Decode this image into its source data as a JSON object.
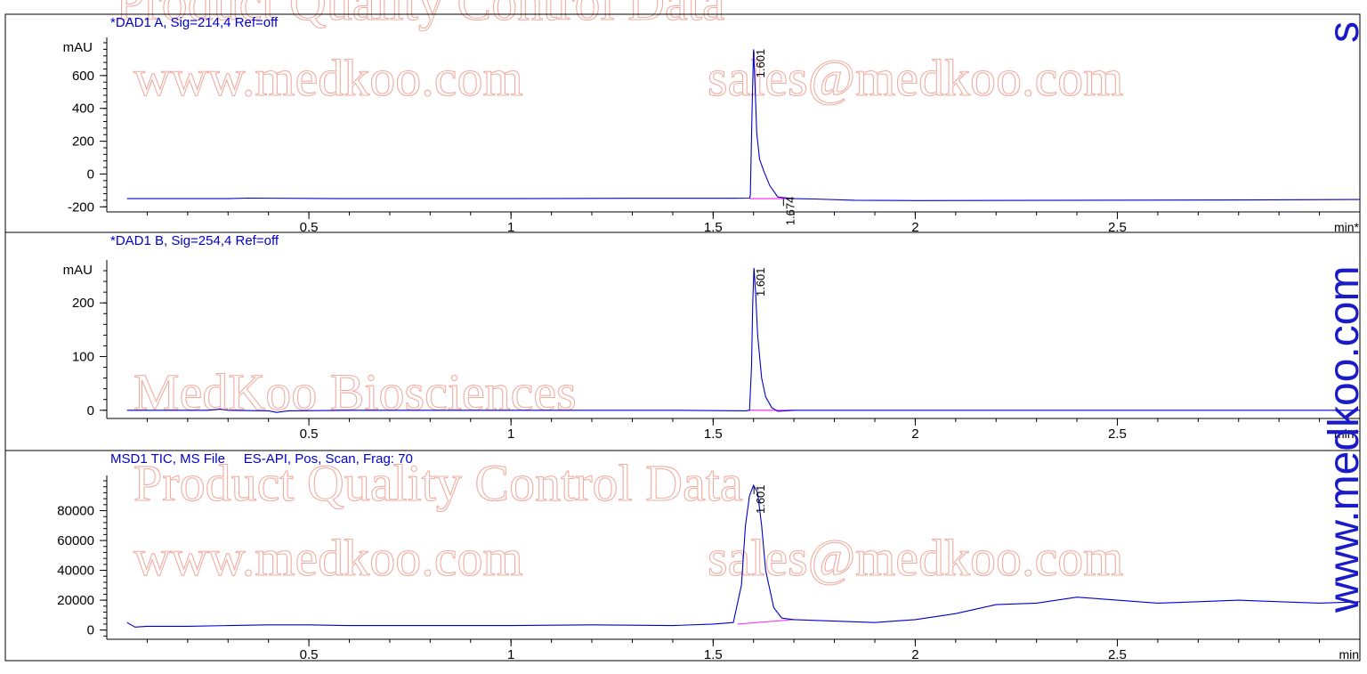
{
  "watermarks": {
    "line1": "Product Quality Control Data",
    "line2": "www.medkoo.com",
    "line3": "sales@medkoo.com",
    "line4": "MedKoo Biosciences",
    "side_text": "www.medkoo.com",
    "color": "#e46a56",
    "side_color": "#1a1ac8"
  },
  "chart_data": [
    {
      "type": "line",
      "title": "*DAD1 A, Sig=214,4 Ref=off",
      "ylabel": "mAU",
      "xlabel": "min",
      "xunit_mark": "min*",
      "xlim": [
        0.0,
        3.1
      ],
      "ylim": [
        -220,
        800
      ],
      "x_ticks": [
        0.5,
        1,
        1.5,
        2,
        2.5
      ],
      "x_tick_labels": [
        "0.5",
        "1",
        "1.5",
        "2",
        "2.5"
      ],
      "y_ticks": [
        -200,
        0,
        200,
        400,
        600
      ],
      "y_tick_labels": [
        "-200",
        "0",
        "200",
        "400",
        "600"
      ],
      "trace_color": "#0000cc",
      "baseline_color": "#ff33ff",
      "series": [
        {
          "x": [
            0.05,
            0.3,
            0.35,
            0.6,
            1.0,
            1.3,
            1.55,
            1.59,
            1.592,
            1.596,
            1.6,
            1.604,
            1.608,
            1.615,
            1.625,
            1.64,
            1.66,
            1.7,
            1.75,
            1.85,
            2.0,
            2.4,
            2.8,
            3.1
          ],
          "y": [
            -150,
            -150,
            -147,
            -150,
            -150,
            -148,
            -148,
            -147,
            -130,
            350,
            760,
            520,
            250,
            90,
            20,
            -70,
            -140,
            -150,
            -152,
            -160,
            -162,
            -160,
            -158,
            -155
          ]
        }
      ],
      "baseline": {
        "x": [
          1.59,
          1.7
        ],
        "y": [
          -150,
          -150
        ]
      },
      "peak_labels": [
        {
          "label": "1.601",
          "x": 1.601,
          "y": 760
        },
        {
          "label": "1.674",
          "x": 1.674,
          "y": -140
        }
      ]
    },
    {
      "type": "line",
      "title": "*DAD1 B, Sig=254,4 Ref=off",
      "ylabel": "mAU",
      "xlabel": "min",
      "xunit_mark": "min*",
      "xlim": [
        0.0,
        3.1
      ],
      "ylim": [
        -12,
        270
      ],
      "x_ticks": [
        0.5,
        1,
        1.5,
        2,
        2.5
      ],
      "x_tick_labels": [
        "0.5",
        "1",
        "1.5",
        "2",
        "2.5"
      ],
      "y_ticks": [
        0,
        100,
        200
      ],
      "y_tick_labels": [
        "0",
        "100",
        "200"
      ],
      "trace_color": "#0000cc",
      "baseline_color": "#ff33ff",
      "series": [
        {
          "x": [
            0.05,
            0.25,
            0.28,
            0.3,
            0.4,
            0.42,
            0.45,
            0.6,
            1.0,
            1.4,
            1.58,
            1.59,
            1.595,
            1.598,
            1.601,
            1.605,
            1.61,
            1.62,
            1.63,
            1.645,
            1.66,
            1.7,
            2.0,
            2.5,
            3.1
          ],
          "y": [
            0,
            0,
            2,
            0,
            -1,
            -4,
            -1,
            0,
            0,
            0,
            -1,
            0,
            80,
            200,
            265,
            220,
            140,
            60,
            25,
            5,
            -2,
            0,
            0,
            0,
            0
          ]
        }
      ],
      "baseline": {
        "x": [
          1.59,
          1.7
        ],
        "y": [
          0,
          0
        ]
      },
      "peak_labels": [
        {
          "label": "1.601",
          "x": 1.601,
          "y": 265
        }
      ]
    },
    {
      "type": "line",
      "title": "MSD1 TIC, MS File     ES-API, Pos, Scan, Frag: 70",
      "ylabel": "",
      "xlabel": "min",
      "xunit_mark": "min",
      "xlim": [
        0.0,
        3.1
      ],
      "ylim": [
        -5000,
        100000
      ],
      "x_ticks": [
        0.5,
        1,
        1.5,
        2,
        2.5
      ],
      "x_tick_labels": [
        "0.5",
        "1",
        "1.5",
        "2",
        "2.5"
      ],
      "y_ticks": [
        0,
        20000,
        40000,
        60000,
        80000
      ],
      "y_tick_labels": [
        "0",
        "20000",
        "40000",
        "60000",
        "80000"
      ],
      "trace_color": "#0000cc",
      "baseline_color": "#ff33ff",
      "series": [
        {
          "x": [
            0.05,
            0.07,
            0.1,
            0.2,
            0.3,
            0.4,
            0.5,
            0.6,
            0.8,
            1.0,
            1.2,
            1.4,
            1.5,
            1.55,
            1.57,
            1.58,
            1.59,
            1.6,
            1.61,
            1.62,
            1.63,
            1.65,
            1.67,
            1.7,
            1.8,
            1.9,
            2.0,
            2.1,
            2.2,
            2.3,
            2.4,
            2.5,
            2.6,
            2.7,
            2.8,
            2.9,
            3.0,
            3.1
          ],
          "y": [
            5000,
            2000,
            2500,
            2500,
            3000,
            3500,
            3500,
            3000,
            3000,
            3000,
            3500,
            3000,
            4000,
            5000,
            30000,
            70000,
            90000,
            97000,
            92000,
            70000,
            40000,
            15000,
            8000,
            7000,
            6000,
            5000,
            7000,
            11000,
            17000,
            18000,
            22000,
            20000,
            18000,
            19000,
            20000,
            19000,
            18000,
            19000
          ]
        }
      ],
      "baseline": {
        "x": [
          1.56,
          1.7
        ],
        "y": [
          4000,
          7000
        ]
      },
      "peak_labels": [
        {
          "label": "1.601",
          "x": 1.601,
          "y": 97000
        }
      ]
    }
  ]
}
